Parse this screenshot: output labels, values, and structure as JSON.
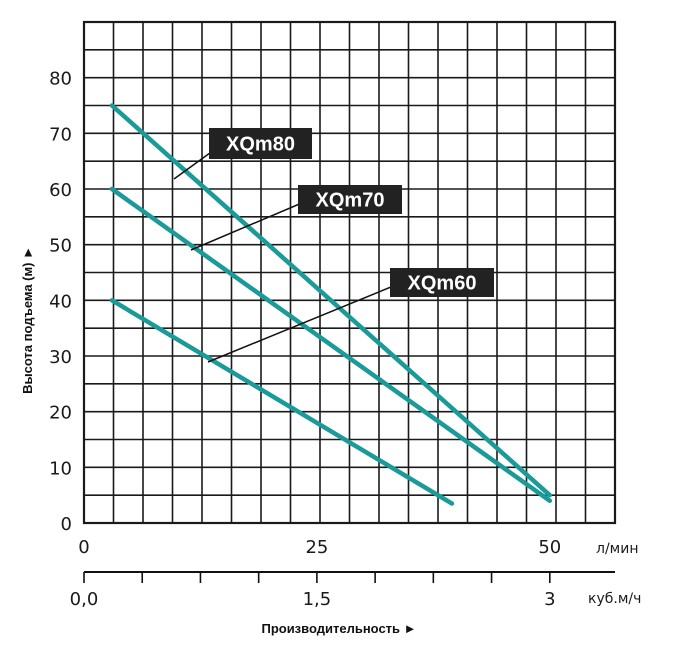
{
  "chart_data": {
    "type": "line",
    "ylabel": "Высота подъема (м) ►",
    "xlabel": "Производительность ►",
    "x_unit_primary": "л/мин",
    "x_unit_secondary": "куб.м/ч",
    "xlim": [
      0,
      57
    ],
    "ylim": [
      0,
      90
    ],
    "y_ticks": [
      0,
      10,
      20,
      30,
      40,
      50,
      60,
      70,
      80
    ],
    "x_ticks_primary": [
      {
        "value": 0,
        "label": "0"
      },
      {
        "value": 25,
        "label": "25"
      },
      {
        "value": 50,
        "label": "50"
      }
    ],
    "x_ticks_secondary": [
      {
        "value": 0,
        "label": "0,0"
      },
      {
        "value": 25,
        "label": "1,5"
      },
      {
        "value": 50,
        "label": "3"
      }
    ],
    "grid": true,
    "series": [
      {
        "name": "XQm80",
        "x": [
          3,
          50
        ],
        "y": [
          75,
          5
        ]
      },
      {
        "name": "XQm70",
        "x": [
          3,
          50
        ],
        "y": [
          60,
          4
        ]
      },
      {
        "name": "XQm60",
        "x": [
          3,
          39.5
        ],
        "y": [
          40,
          3.5
        ]
      }
    ],
    "colors": {
      "line": "#1a9a98",
      "grid": "#1a1a1a",
      "label_bg": "#222222",
      "label_text": "#ffffff"
    }
  }
}
